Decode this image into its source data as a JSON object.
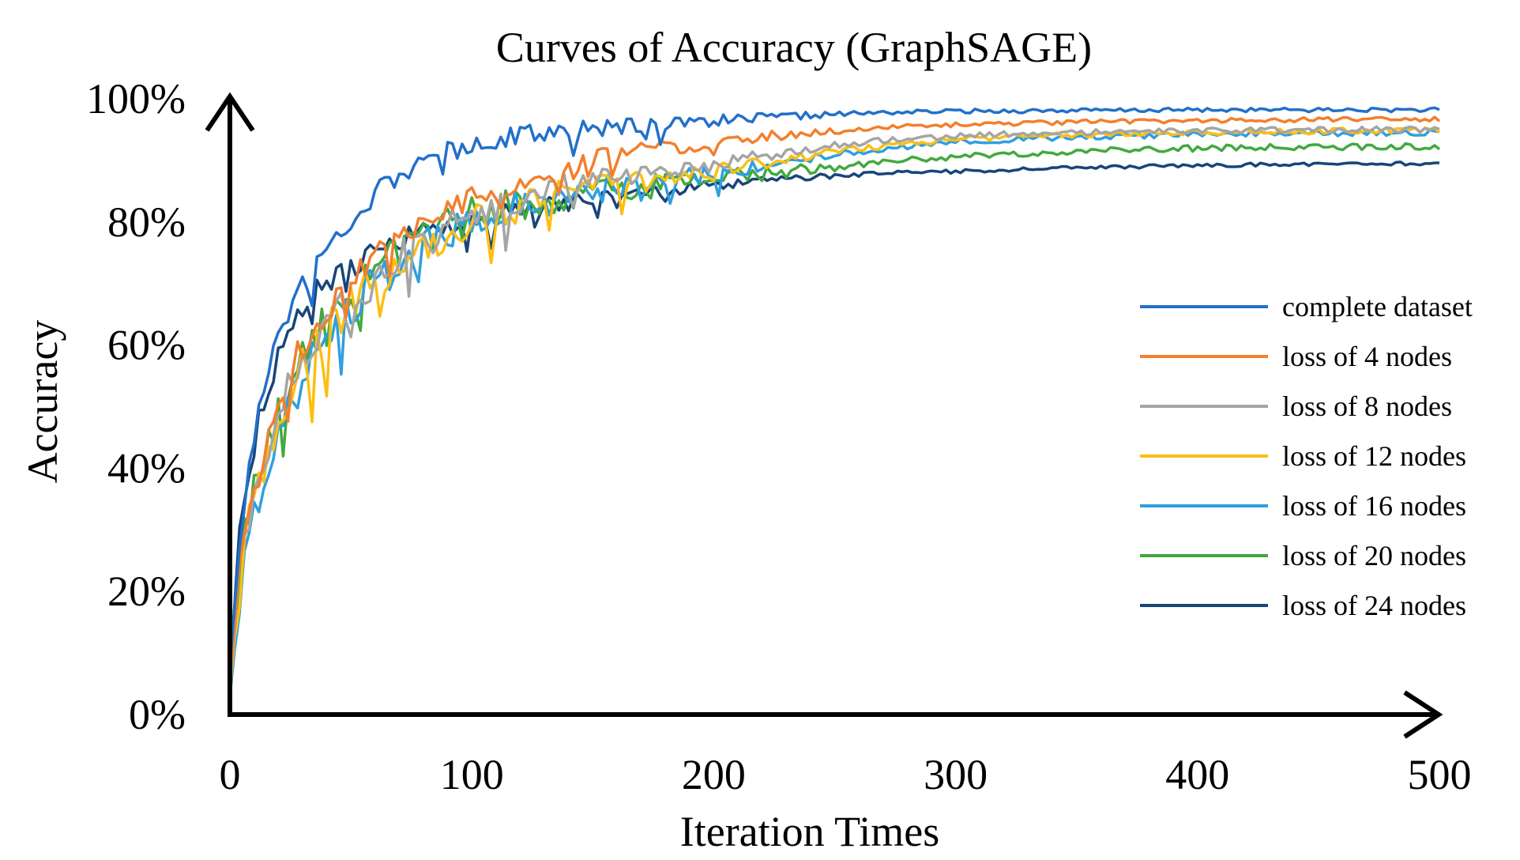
{
  "chart_data": {
    "type": "line",
    "title": "Curves of Accuracy (GraphSAGE)",
    "xlabel": "Iteration Times",
    "ylabel": "Accuracy",
    "xlim": [
      0,
      500
    ],
    "ylim": [
      0,
      1
    ],
    "x_ticks": [
      0,
      100,
      200,
      300,
      400,
      500
    ],
    "x_tick_labels": [
      "0",
      "100",
      "200",
      "300",
      "400",
      "500"
    ],
    "y_ticks": [
      0,
      0.2,
      0.4,
      0.6,
      0.8,
      1.0
    ],
    "y_tick_labels": [
      "0%",
      "20%",
      "40%",
      "60%",
      "80%",
      "100%"
    ],
    "grid": false,
    "legend_position": "right",
    "x": [
      0,
      5,
      10,
      15,
      20,
      25,
      30,
      40,
      50,
      60,
      70,
      80,
      90,
      100,
      120,
      140,
      160,
      180,
      200,
      225,
      250,
      275,
      300,
      350,
      400,
      450,
      500
    ],
    "series": [
      {
        "name": "complete dataset",
        "color": "#2270c9",
        "noise": 0.028,
        "values": [
          0.08,
          0.32,
          0.45,
          0.56,
          0.62,
          0.67,
          0.7,
          0.75,
          0.81,
          0.85,
          0.88,
          0.9,
          0.91,
          0.93,
          0.94,
          0.95,
          0.955,
          0.96,
          0.965,
          0.97,
          0.975,
          0.978,
          0.98,
          0.981,
          0.982,
          0.982,
          0.982
        ]
      },
      {
        "name": "loss of 4 nodes",
        "color": "#f37f2d",
        "noise": 0.032,
        "values": [
          0.06,
          0.28,
          0.37,
          0.44,
          0.5,
          0.55,
          0.6,
          0.66,
          0.71,
          0.75,
          0.78,
          0.8,
          0.82,
          0.84,
          0.87,
          0.89,
          0.91,
          0.92,
          0.93,
          0.94,
          0.948,
          0.954,
          0.958,
          0.962,
          0.965,
          0.966,
          0.967
        ]
      },
      {
        "name": "loss of 8 nodes",
        "color": "#a5a5a5",
        "noise": 0.04,
        "values": [
          0.05,
          0.27,
          0.36,
          0.43,
          0.48,
          0.53,
          0.58,
          0.64,
          0.68,
          0.71,
          0.74,
          0.77,
          0.79,
          0.81,
          0.84,
          0.86,
          0.87,
          0.88,
          0.89,
          0.91,
          0.925,
          0.935,
          0.94,
          0.945,
          0.948,
          0.95,
          0.95
        ]
      },
      {
        "name": "loss of 12 nodes",
        "color": "#fcbf11",
        "noise": 0.04,
        "values": [
          0.04,
          0.25,
          0.34,
          0.41,
          0.46,
          0.51,
          0.56,
          0.62,
          0.67,
          0.7,
          0.73,
          0.76,
          0.78,
          0.8,
          0.83,
          0.85,
          0.86,
          0.87,
          0.88,
          0.9,
          0.915,
          0.925,
          0.935,
          0.942,
          0.946,
          0.948,
          0.949
        ]
      },
      {
        "name": "loss of 16 nodes",
        "color": "#2f9fdf",
        "noise": 0.04,
        "values": [
          0.03,
          0.22,
          0.32,
          0.4,
          0.45,
          0.5,
          0.55,
          0.61,
          0.66,
          0.7,
          0.73,
          0.76,
          0.78,
          0.8,
          0.83,
          0.85,
          0.86,
          0.87,
          0.88,
          0.895,
          0.91,
          0.92,
          0.93,
          0.938,
          0.942,
          0.944,
          0.945
        ]
      },
      {
        "name": "loss of 20 nodes",
        "color": "#42a93e",
        "noise": 0.045,
        "values": [
          0.05,
          0.26,
          0.35,
          0.43,
          0.49,
          0.54,
          0.58,
          0.63,
          0.68,
          0.72,
          0.75,
          0.77,
          0.79,
          0.81,
          0.83,
          0.84,
          0.85,
          0.86,
          0.87,
          0.88,
          0.89,
          0.9,
          0.905,
          0.915,
          0.92,
          0.922,
          0.922
        ]
      },
      {
        "name": "loss of 24 nodes",
        "color": "#18457a",
        "noise": 0.025,
        "values": [
          0.07,
          0.35,
          0.44,
          0.52,
          0.58,
          0.62,
          0.66,
          0.7,
          0.73,
          0.75,
          0.77,
          0.78,
          0.79,
          0.8,
          0.82,
          0.83,
          0.84,
          0.85,
          0.86,
          0.87,
          0.875,
          0.88,
          0.882,
          0.888,
          0.892,
          0.894,
          0.895
        ]
      }
    ]
  }
}
